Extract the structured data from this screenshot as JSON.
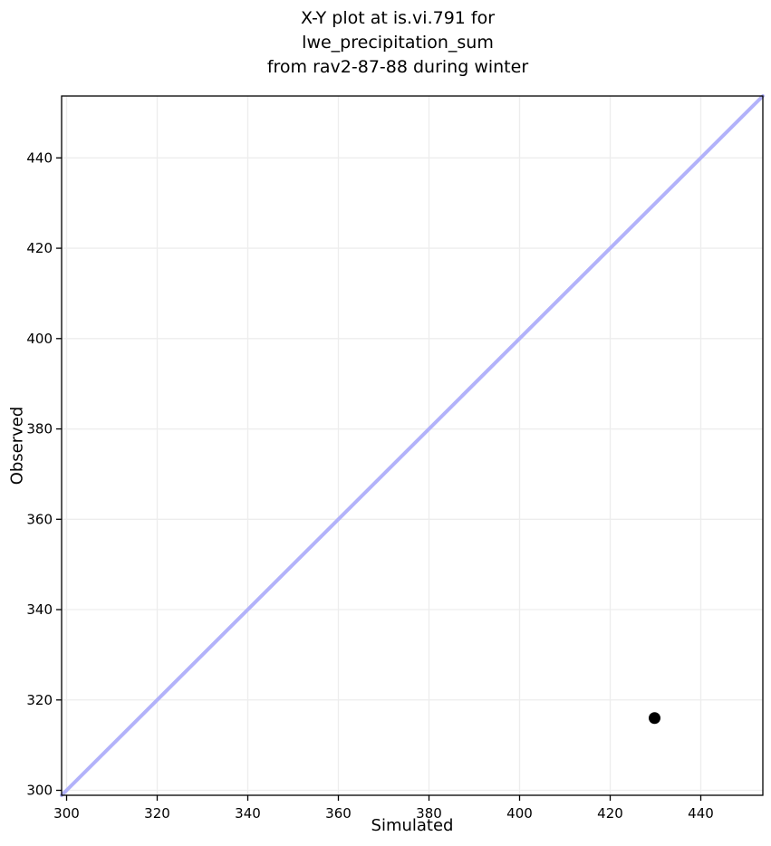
{
  "chart_data": {
    "type": "scatter",
    "title": "X-Y plot at is.vi.791 for lwe_precipitation_sum\nfrom rav2-87-88 during winter",
    "xlabel": "Simulated",
    "ylabel": "Observed",
    "xlim": [
      298.9,
      453.7
    ],
    "ylim": [
      298.9,
      453.7
    ],
    "xticks": [
      300,
      320,
      340,
      360,
      380,
      400,
      420,
      440
    ],
    "yticks": [
      300,
      320,
      340,
      360,
      380,
      400,
      420,
      440
    ],
    "grid": true,
    "legend": false,
    "series": [
      {
        "name": "identity-line",
        "type": "line",
        "x": [
          298.9,
          453.7
        ],
        "y": [
          298.9,
          453.7
        ],
        "color": "#b2b2fa",
        "width": 4
      },
      {
        "name": "observations",
        "type": "scatter",
        "points": [
          [
            429.8,
            316.0
          ]
        ],
        "color": "#000000",
        "radius": 6.5
      }
    ],
    "colors": {
      "grid": "#ededed",
      "spine": "#000000",
      "text": "#000000",
      "background": "#ffffff"
    }
  }
}
